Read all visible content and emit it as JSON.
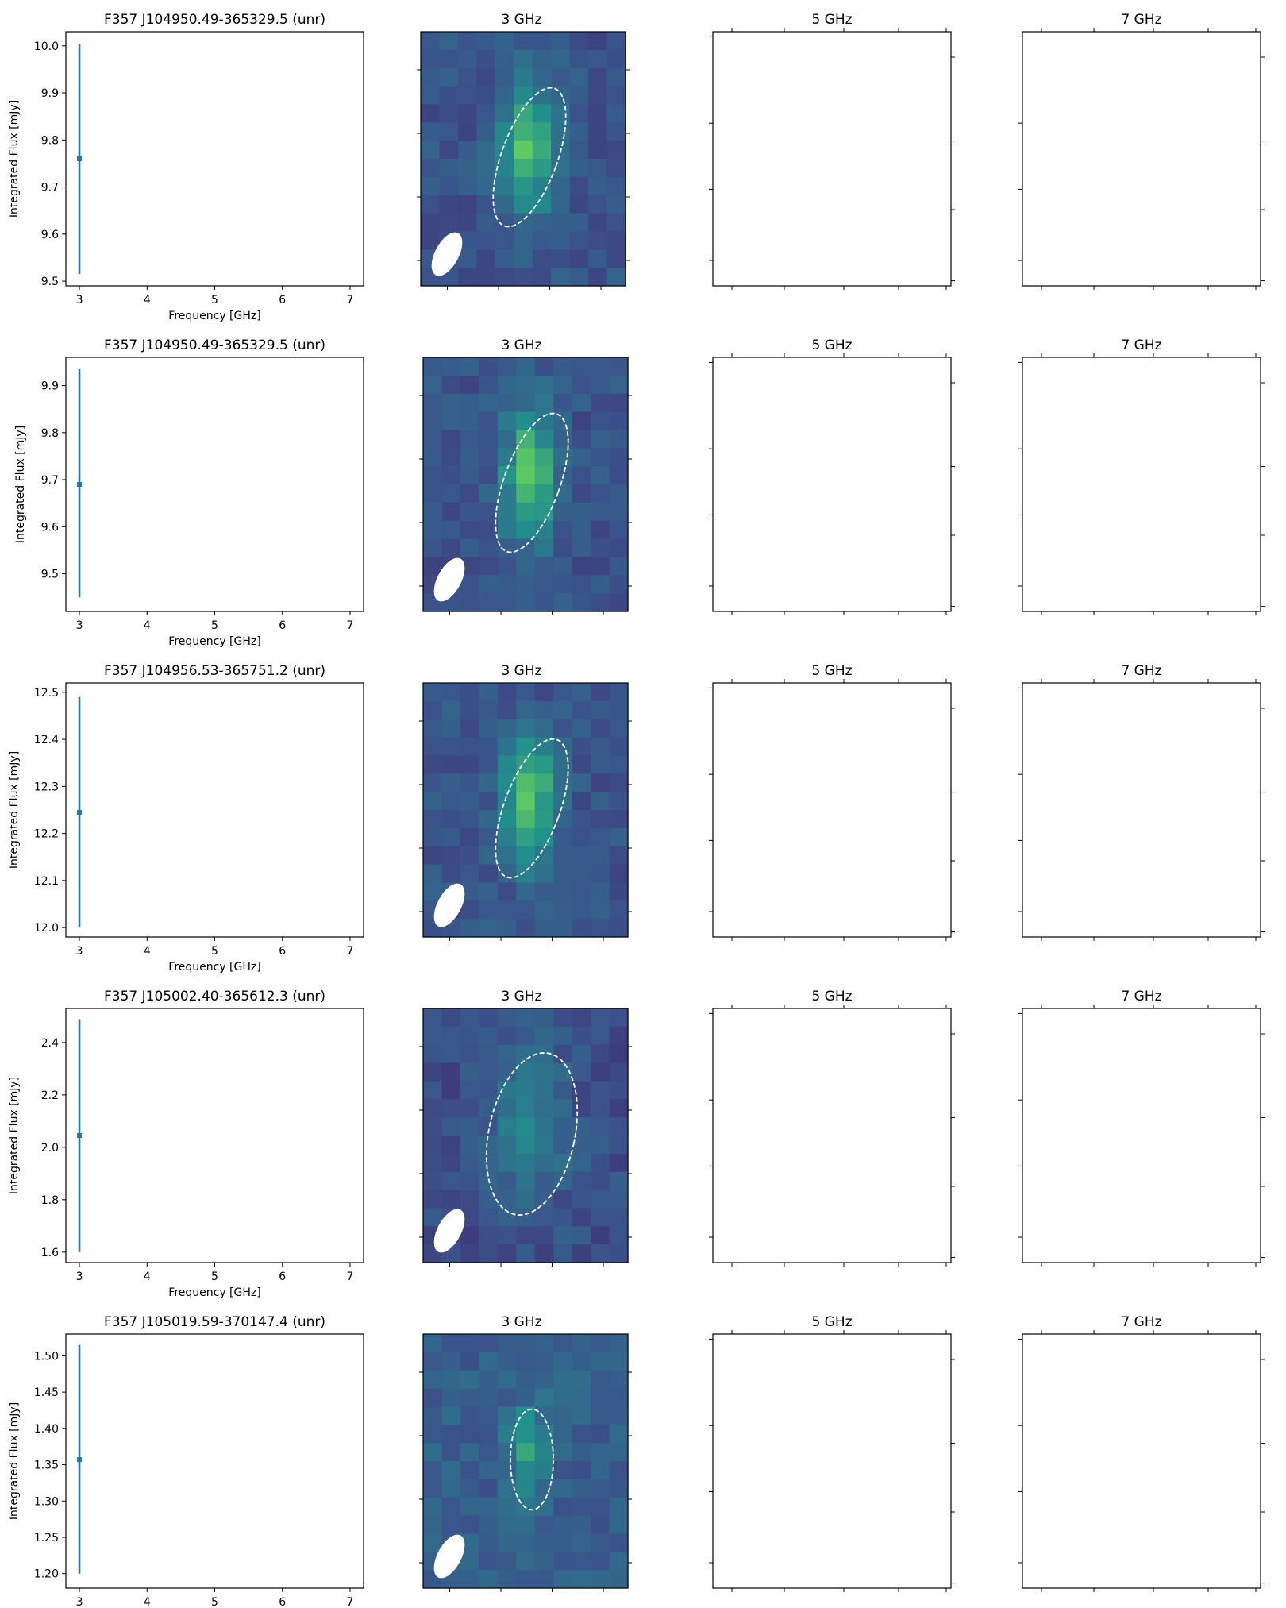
{
  "chart_data": [
    {
      "type": "scatter",
      "title": "F357 J104950.49-365329.5 (unr)",
      "xlabel": "Frequency [GHz]",
      "ylabel": "Integrated Flux [mJy]",
      "xlim": [
        2.8,
        7.2
      ],
      "ylim": [
        9.49,
        10.03
      ],
      "xticks": [
        "3",
        "4",
        "5",
        "6",
        "7"
      ],
      "yticks": [
        "9.5",
        "9.6",
        "9.7",
        "9.8",
        "9.9",
        "10.0"
      ],
      "points": [
        {
          "x": 3,
          "y": 9.76,
          "err_low": 9.515,
          "err_high": 10.005
        }
      ],
      "image_panels": [
        {
          "title": "3 GHz",
          "has_image": true,
          "source_ellipse": {
            "cx": 0.5,
            "cy": 0.5,
            "rx": 0.13,
            "ry": 0.32,
            "rotation_deg": 20
          }
        },
        {
          "title": "5 GHz",
          "has_image": false
        },
        {
          "title": "7 GHz",
          "has_image": false
        }
      ]
    },
    {
      "type": "scatter",
      "title": "F357 J104950.49-365329.5 (unr)",
      "xlabel": "Frequency [GHz]",
      "ylabel": "Integrated Flux [mJy]",
      "xlim": [
        2.8,
        7.2
      ],
      "ylim": [
        9.42,
        9.96
      ],
      "xticks": [
        "3",
        "4",
        "5",
        "6",
        "7"
      ],
      "yticks": [
        "9.5",
        "9.6",
        "9.7",
        "9.8",
        "9.9"
      ],
      "points": [
        {
          "x": 3,
          "y": 9.69,
          "err_low": 9.45,
          "err_high": 9.935
        }
      ],
      "image_panels": [
        {
          "title": "3 GHz",
          "has_image": true,
          "source_ellipse": {
            "cx": 0.5,
            "cy": 0.5,
            "rx": 0.13,
            "ry": 0.32,
            "rotation_deg": 20
          }
        },
        {
          "title": "5 GHz",
          "has_image": false
        },
        {
          "title": "7 GHz",
          "has_image": false
        }
      ]
    },
    {
      "type": "scatter",
      "title": "F357 J104956.53-365751.2 (unr)",
      "xlabel": "Frequency [GHz]",
      "ylabel": "Integrated Flux [mJy]",
      "xlim": [
        2.8,
        7.2
      ],
      "ylim": [
        11.98,
        12.52
      ],
      "xticks": [
        "3",
        "4",
        "5",
        "6",
        "7"
      ],
      "yticks": [
        "12.0",
        "12.1",
        "12.2",
        "12.3",
        "12.4",
        "12.5"
      ],
      "points": [
        {
          "x": 3,
          "y": 12.245,
          "err_low": 12.0,
          "err_high": 12.49
        }
      ],
      "image_panels": [
        {
          "title": "3 GHz",
          "has_image": true,
          "source_ellipse": {
            "cx": 0.5,
            "cy": 0.5,
            "rx": 0.13,
            "ry": 0.32,
            "rotation_deg": 20
          }
        },
        {
          "title": "5 GHz",
          "has_image": false
        },
        {
          "title": "7 GHz",
          "has_image": false
        }
      ]
    },
    {
      "type": "scatter",
      "title": "F357 J105002.40-365612.3 (unr)",
      "xlabel": "Frequency [GHz]",
      "ylabel": "Integrated Flux [mJy]",
      "xlim": [
        2.8,
        7.2
      ],
      "ylim": [
        1.56,
        2.53
      ],
      "xticks": [
        "3",
        "4",
        "5",
        "6",
        "7"
      ],
      "yticks": [
        "1.6",
        "1.8",
        "2.0",
        "2.2",
        "2.4"
      ],
      "points": [
        {
          "x": 3,
          "y": 2.045,
          "err_low": 1.6,
          "err_high": 2.49
        }
      ],
      "image_panels": [
        {
          "title": "3 GHz",
          "has_image": true,
          "source_ellipse": {
            "cx": 0.5,
            "cy": 0.5,
            "rx": 0.2,
            "ry": 0.36,
            "rotation_deg": 12
          }
        },
        {
          "title": "5 GHz",
          "has_image": false
        },
        {
          "title": "7 GHz",
          "has_image": false
        }
      ]
    },
    {
      "type": "scatter",
      "title": "F357 J105019.59-370147.4 (unr)",
      "xlabel": "Frequency [GHz]",
      "ylabel": "Integrated Flux [mJy]",
      "xlim": [
        2.8,
        7.2
      ],
      "ylim": [
        1.18,
        1.53
      ],
      "xticks": [
        "3",
        "4",
        "5",
        "6",
        "7"
      ],
      "yticks": [
        "1.20",
        "1.25",
        "1.30",
        "1.35",
        "1.40",
        "1.45",
        "1.50"
      ],
      "points": [
        {
          "x": 3,
          "y": 1.357,
          "err_low": 1.2,
          "err_high": 1.515
        }
      ],
      "image_panels": [
        {
          "title": "3 GHz",
          "has_image": true,
          "source_ellipse": {
            "cx": 0.5,
            "cy": 0.5,
            "rx": 0.1,
            "ry": 0.22,
            "rotation_deg": 0
          }
        },
        {
          "title": "5 GHz",
          "has_image": false
        },
        {
          "title": "7 GHz",
          "has_image": false
        }
      ]
    }
  ]
}
